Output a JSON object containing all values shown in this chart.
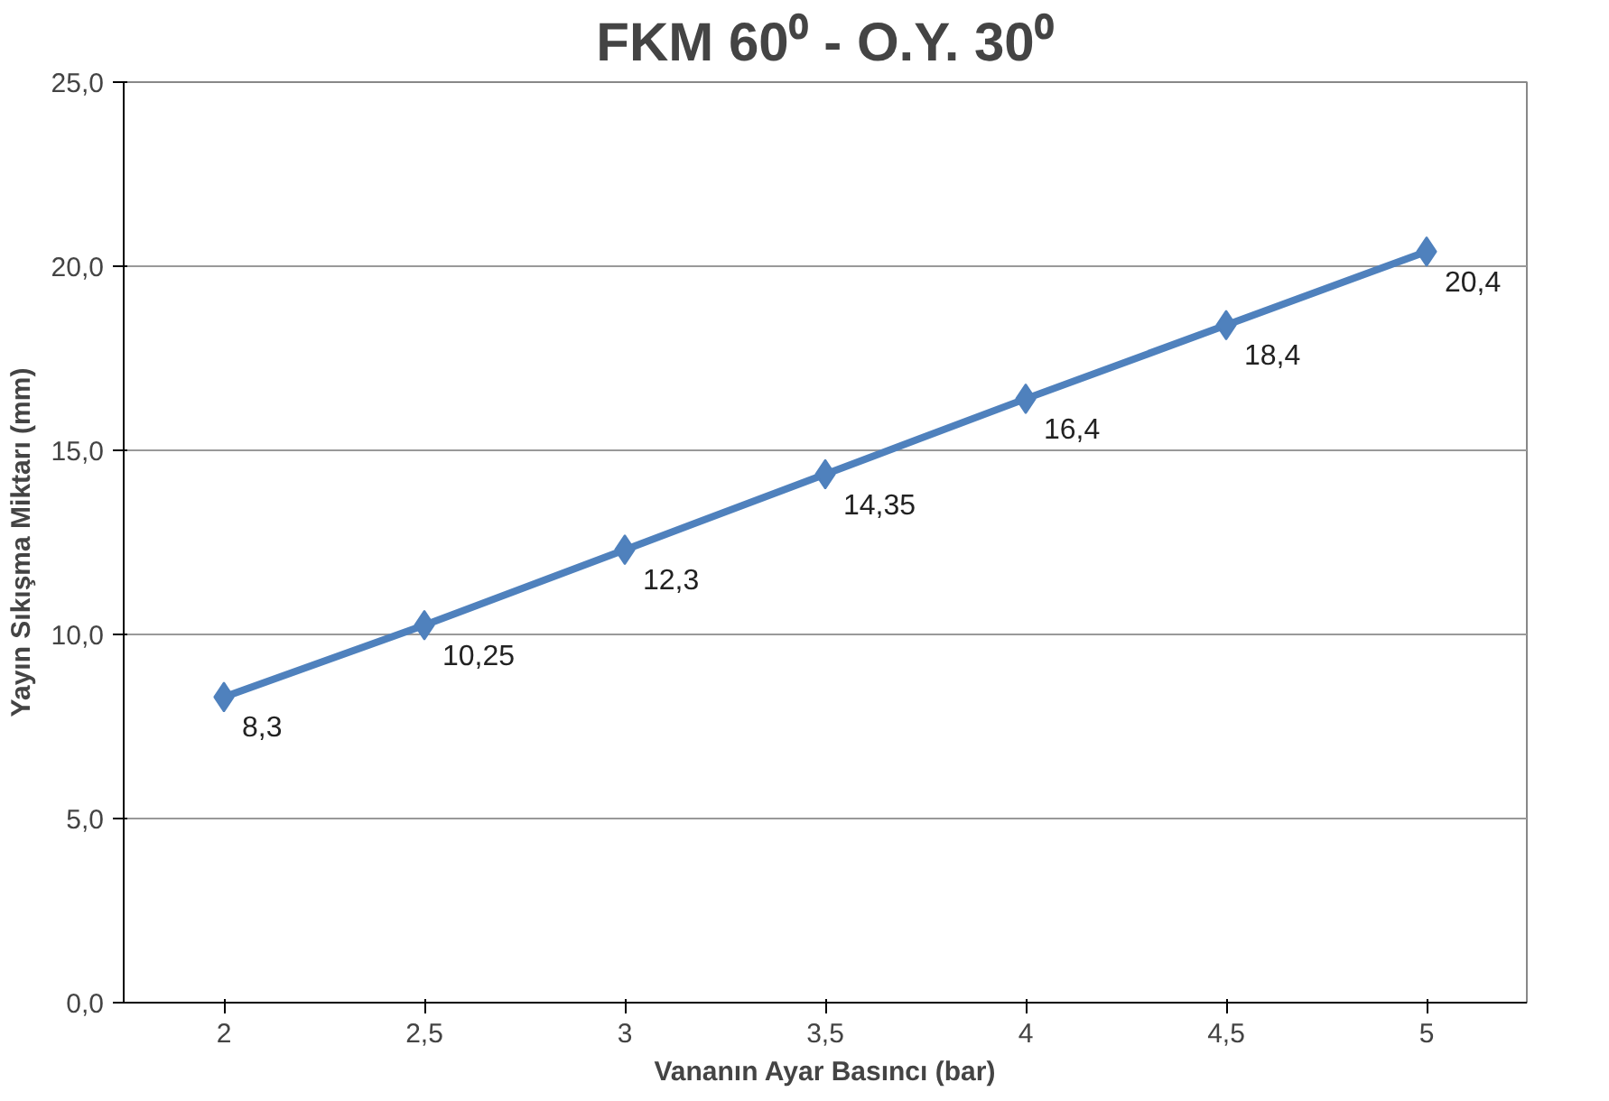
{
  "chart_data": {
    "type": "line",
    "title": "FKM 60⁰ - O.Y. 30⁰",
    "xlabel": "Vananın Ayar Basıncı (bar)",
    "ylabel": "Yayın Sıkışma Miktarı (mm)",
    "categories": [
      "2",
      "2,5",
      "3",
      "3,5",
      "4",
      "4,5",
      "5"
    ],
    "series": [
      {
        "color": "#4f81bd",
        "values": [
          8.3,
          10.25,
          12.3,
          14.35,
          16.4,
          18.4,
          20.4
        ],
        "value_labels": [
          "8,3",
          "10,25",
          "12,3",
          "14,35",
          "16,4",
          "18,4",
          "20,4"
        ]
      }
    ],
    "ylim": [
      0,
      25
    ],
    "yticks": [
      {
        "value": 0,
        "label": "0,0"
      },
      {
        "value": 5,
        "label": "5,0"
      },
      {
        "value": 10,
        "label": "10,0"
      },
      {
        "value": 15,
        "label": "15,0"
      },
      {
        "value": 20,
        "label": "20,0"
      },
      {
        "value": 25,
        "label": "25,0"
      }
    ],
    "grid": "y",
    "marker": "diamond",
    "line_style": "solid"
  }
}
